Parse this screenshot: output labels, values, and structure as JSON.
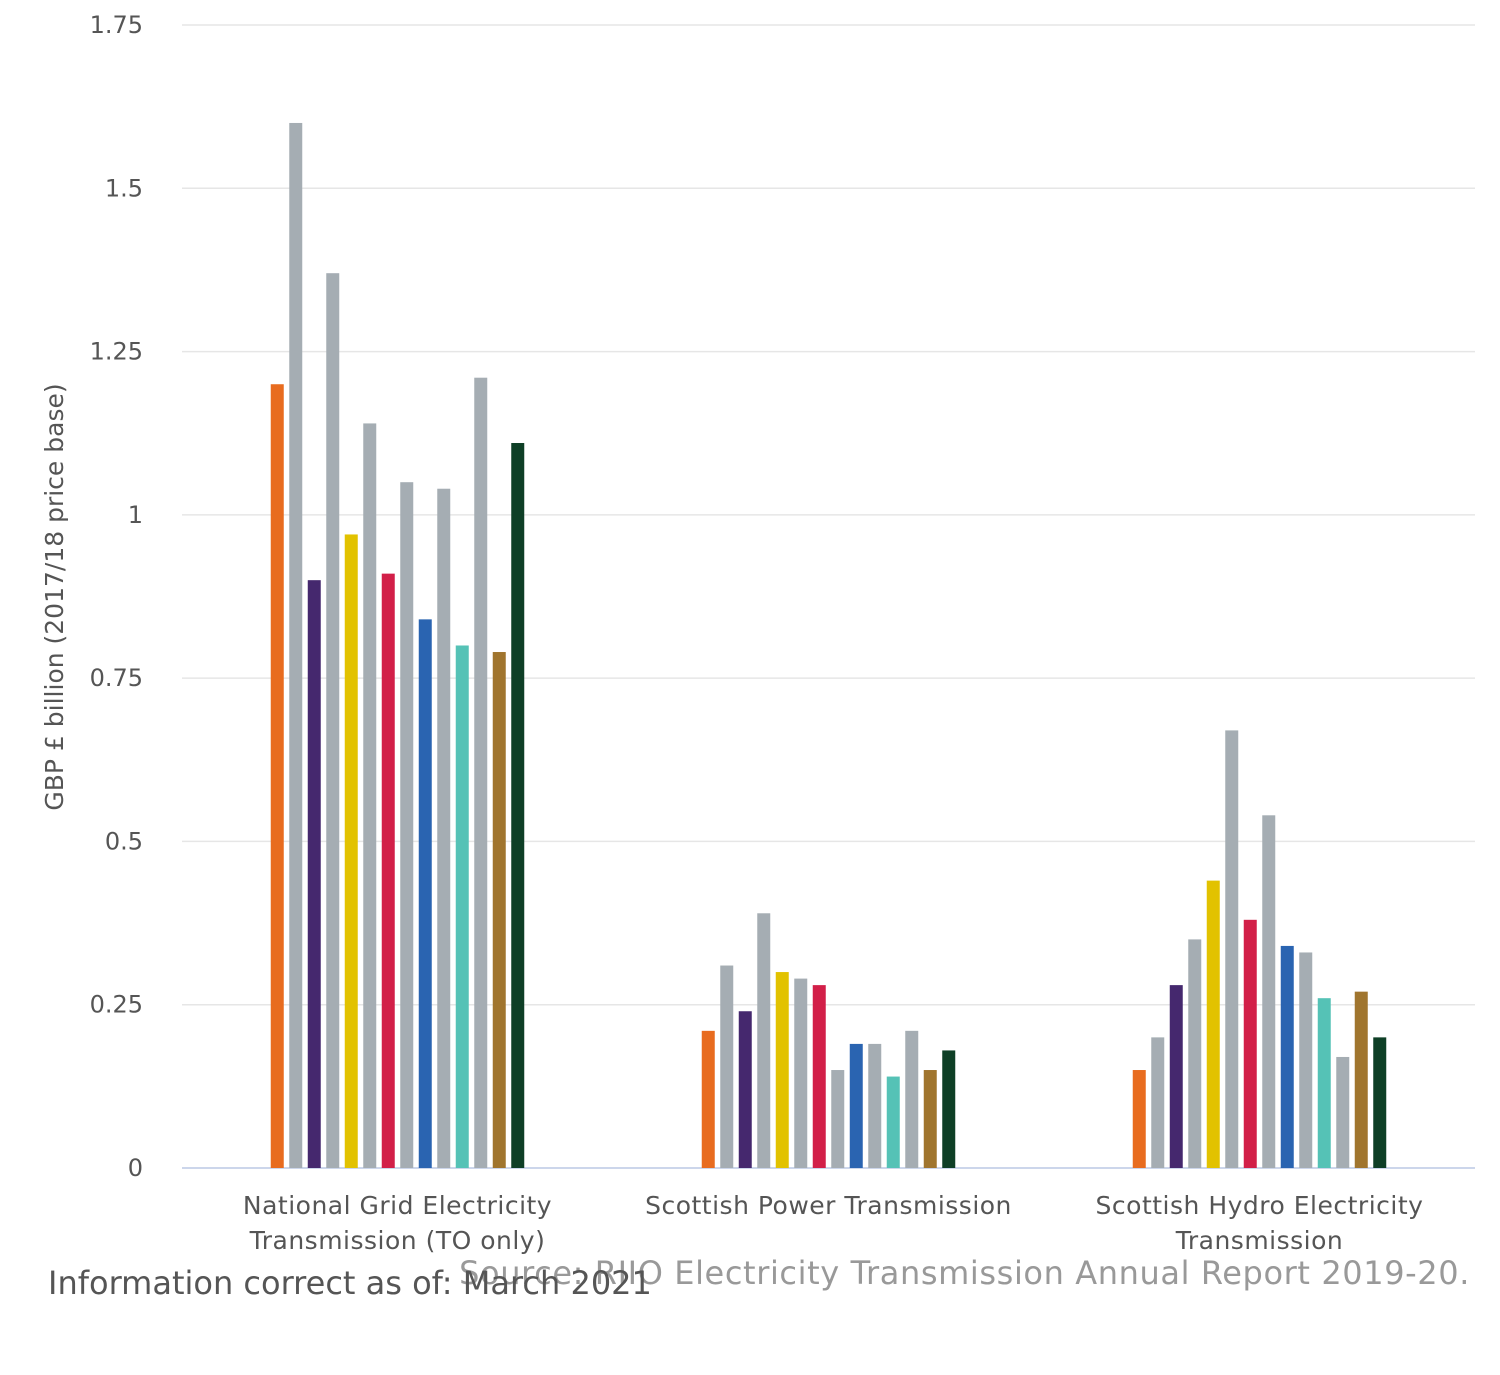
{
  "chart_data": {
    "type": "bar",
    "ylabel": "GBP £ billion (2017/18 price base)",
    "ylim": [
      0,
      1.75
    ],
    "yticks": [
      "0",
      "0.25",
      "0.5",
      "0.75",
      "1",
      "1.25",
      "1.5",
      "1.75"
    ],
    "ytick_values": [
      0,
      0.25,
      0.5,
      0.75,
      1,
      1.25,
      1.5,
      1.75
    ],
    "grid": true,
    "categories": [
      [
        "National Grid Electricity",
        "Transmission (TO only)"
      ],
      [
        "Scottish Power Transmission"
      ],
      [
        "Scottish Hydro Electricity",
        "Transmission"
      ]
    ],
    "series": [
      {
        "color": "#e86c1f",
        "values": [
          1.2,
          0.21,
          0.15
        ]
      },
      {
        "color": "#a5adb3",
        "values": [
          1.6,
          0.31,
          0.2
        ]
      },
      {
        "color": "#45286e",
        "values": [
          0.9,
          0.24,
          0.28
        ]
      },
      {
        "color": "#a5adb3",
        "values": [
          1.37,
          0.39,
          0.35
        ]
      },
      {
        "color": "#e2c200",
        "values": [
          0.97,
          0.3,
          0.44
        ]
      },
      {
        "color": "#a5adb3",
        "values": [
          1.14,
          0.29,
          0.67
        ]
      },
      {
        "color": "#d21f48",
        "values": [
          0.91,
          0.28,
          0.38
        ]
      },
      {
        "color": "#a5adb3",
        "values": [
          1.05,
          0.15,
          0.54
        ]
      },
      {
        "color": "#2a64b1",
        "values": [
          0.84,
          0.19,
          0.34
        ]
      },
      {
        "color": "#a5adb3",
        "values": [
          1.04,
          0.19,
          0.33
        ]
      },
      {
        "color": "#55c2b6",
        "values": [
          0.8,
          0.14,
          0.26
        ]
      },
      {
        "color": "#a5adb3",
        "values": [
          1.21,
          0.21,
          0.17
        ]
      },
      {
        "color": "#a0752e",
        "values": [
          0.79,
          0.15,
          0.27
        ]
      },
      {
        "color": "#0e3f26",
        "values": [
          1.11,
          0.18,
          0.2
        ]
      }
    ]
  },
  "notes": {
    "source": "Source: RIIO Electricity Transmission Annual Report 2019-20.",
    "info": "Information correct as of: March 2021"
  }
}
